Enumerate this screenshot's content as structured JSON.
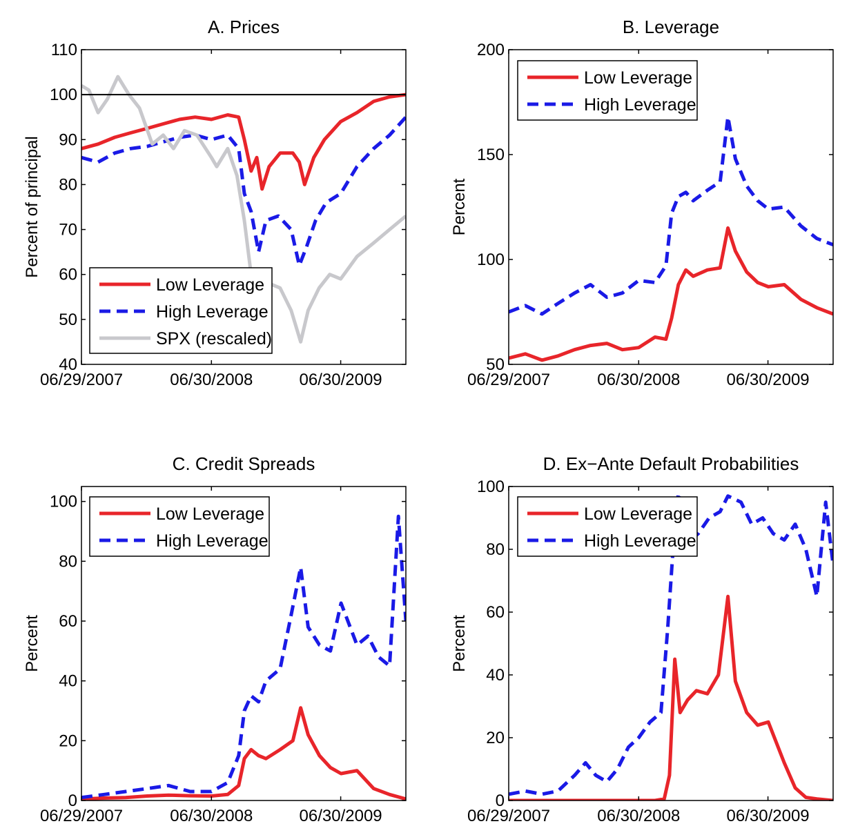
{
  "colors": {
    "low": "#e8252a",
    "high": "#1a1ae6",
    "spx": "#c8c8cc",
    "axis": "#000000"
  },
  "chart_data": [
    {
      "type": "line",
      "title": "A. Prices",
      "ylabel": "Percent of principal",
      "xlabel": "",
      "ylim": [
        40,
        110
      ],
      "yticks": [
        40,
        50,
        60,
        70,
        80,
        90,
        100,
        110
      ],
      "xticks": [
        "06/29/2007",
        "06/30/2008",
        "06/30/2009"
      ],
      "xlim": [
        "2007-06-29",
        "2009-12-31"
      ],
      "reference_line": 100,
      "legend_position": "bottom-left",
      "series": [
        {
          "name": "Low Leverage",
          "style": "solid",
          "color_key": "low",
          "x": [
            "2007-06-29",
            "2007-08-15",
            "2007-10-01",
            "2007-11-15",
            "2008-01-01",
            "2008-02-15",
            "2008-04-01",
            "2008-05-15",
            "2008-06-30",
            "2008-08-15",
            "2008-09-15",
            "2008-10-01",
            "2008-10-20",
            "2008-11-05",
            "2008-11-20",
            "2008-12-10",
            "2009-01-10",
            "2009-02-15",
            "2009-03-05",
            "2009-03-20",
            "2009-04-15",
            "2009-05-15",
            "2009-06-30",
            "2009-08-15",
            "2009-10-01",
            "2009-11-15",
            "2009-12-31"
          ],
          "y": [
            88,
            89,
            90.5,
            91.5,
            92.5,
            93.5,
            94.5,
            95,
            94.5,
            95.5,
            95,
            90,
            83,
            86,
            79,
            84,
            87,
            87,
            85,
            80,
            86,
            90,
            94,
            96,
            98.5,
            99.5,
            100
          ]
        },
        {
          "name": "High Leverage",
          "style": "dashed",
          "color_key": "high",
          "x": [
            "2007-06-29",
            "2007-08-15",
            "2007-10-01",
            "2007-11-15",
            "2008-01-01",
            "2008-02-15",
            "2008-04-01",
            "2008-05-15",
            "2008-06-30",
            "2008-08-15",
            "2008-09-15",
            "2008-10-01",
            "2008-10-20",
            "2008-11-10",
            "2008-12-01",
            "2009-01-05",
            "2009-02-10",
            "2009-03-05",
            "2009-03-25",
            "2009-04-20",
            "2009-05-20",
            "2009-06-30",
            "2009-08-15",
            "2009-10-01",
            "2009-11-15",
            "2009-12-31"
          ],
          "y": [
            86,
            85,
            87,
            88,
            88.5,
            89.5,
            90.5,
            91,
            90,
            91,
            88,
            78,
            74,
            65,
            72,
            73,
            70,
            62,
            66,
            72,
            76,
            78,
            84,
            88,
            91,
            95
          ]
        },
        {
          "name": "SPX (rescaled)",
          "style": "solid",
          "color_key": "spx",
          "x": [
            "2007-06-29",
            "2007-07-20",
            "2007-08-15",
            "2007-09-10",
            "2007-10-10",
            "2007-11-10",
            "2007-12-10",
            "2008-01-15",
            "2008-02-15",
            "2008-03-15",
            "2008-04-15",
            "2008-05-20",
            "2008-06-30",
            "2008-07-15",
            "2008-08-15",
            "2008-09-10",
            "2008-10-01",
            "2008-10-20",
            "2008-11-20",
            "2008-12-10",
            "2009-01-10",
            "2009-02-10",
            "2009-03-09",
            "2009-03-30",
            "2009-04-30",
            "2009-05-30",
            "2009-06-30",
            "2009-08-15",
            "2009-10-01",
            "2009-11-15",
            "2009-12-31"
          ],
          "y": [
            102,
            101,
            96,
            99,
            104,
            100,
            97,
            89,
            91,
            88,
            92,
            91,
            86,
            84,
            88,
            82,
            72,
            60,
            54,
            58,
            57,
            52,
            45,
            52,
            57,
            60,
            59,
            64,
            67,
            70,
            73
          ]
        }
      ]
    },
    {
      "type": "line",
      "title": "B. Leverage",
      "ylabel": "Percent",
      "xlabel": "",
      "ylim": [
        50,
        200
      ],
      "yticks": [
        50,
        100,
        150,
        200
      ],
      "xticks": [
        "06/29/2007",
        "06/30/2008",
        "06/30/2009"
      ],
      "xlim": [
        "2007-06-29",
        "2009-12-31"
      ],
      "legend_position": "top-left",
      "series": [
        {
          "name": "Low Leverage",
          "style": "solid",
          "color_key": "low",
          "x": [
            "2007-06-29",
            "2007-08-15",
            "2007-10-01",
            "2007-11-15",
            "2008-01-01",
            "2008-02-15",
            "2008-04-01",
            "2008-05-15",
            "2008-06-30",
            "2008-08-15",
            "2008-09-15",
            "2008-10-01",
            "2008-10-20",
            "2008-11-10",
            "2008-12-01",
            "2009-01-10",
            "2009-02-15",
            "2009-03-09",
            "2009-03-30",
            "2009-05-01",
            "2009-06-01",
            "2009-07-01",
            "2009-08-15",
            "2009-10-01",
            "2009-11-15",
            "2009-12-31"
          ],
          "y": [
            53,
            55,
            52,
            54,
            57,
            59,
            60,
            57,
            58,
            63,
            62,
            72,
            88,
            95,
            92,
            95,
            96,
            115,
            104,
            94,
            89,
            87,
            88,
            81,
            77,
            74
          ]
        },
        {
          "name": "High Leverage",
          "style": "dashed",
          "color_key": "high",
          "x": [
            "2007-06-29",
            "2007-08-15",
            "2007-10-01",
            "2007-11-15",
            "2008-01-01",
            "2008-02-15",
            "2008-04-01",
            "2008-05-15",
            "2008-06-30",
            "2008-08-15",
            "2008-09-15",
            "2008-10-01",
            "2008-10-20",
            "2008-11-10",
            "2008-12-01",
            "2009-01-10",
            "2009-02-15",
            "2009-03-09",
            "2009-03-30",
            "2009-05-01",
            "2009-06-01",
            "2009-07-01",
            "2009-08-15",
            "2009-10-01",
            "2009-11-15",
            "2009-12-31"
          ],
          "y": [
            75,
            78,
            74,
            79,
            84,
            88,
            82,
            84,
            90,
            89,
            97,
            122,
            130,
            132,
            128,
            133,
            137,
            168,
            148,
            135,
            128,
            124,
            125,
            116,
            110,
            107
          ]
        }
      ]
    },
    {
      "type": "line",
      "title": "C. Credit Spreads",
      "ylabel": "Percent",
      "xlabel": "",
      "ylim": [
        0,
        105
      ],
      "yticks": [
        0,
        20,
        40,
        60,
        80,
        100
      ],
      "xticks": [
        "06/29/2007",
        "06/30/2008",
        "06/30/2009"
      ],
      "xlim": [
        "2007-06-29",
        "2009-12-31"
      ],
      "legend_position": "top-left",
      "series": [
        {
          "name": "Low Leverage",
          "style": "solid",
          "color_key": "low",
          "x": [
            "2007-06-29",
            "2007-09-01",
            "2007-11-01",
            "2008-01-01",
            "2008-03-01",
            "2008-05-01",
            "2008-06-30",
            "2008-08-15",
            "2008-09-15",
            "2008-10-01",
            "2008-10-20",
            "2008-11-10",
            "2008-12-01",
            "2009-01-10",
            "2009-02-15",
            "2009-03-09",
            "2009-03-30",
            "2009-05-01",
            "2009-06-01",
            "2009-07-01",
            "2009-08-15",
            "2009-10-01",
            "2009-11-15",
            "2009-12-31"
          ],
          "y": [
            0.5,
            0.8,
            1,
            1.5,
            1.8,
            1.6,
            1.5,
            2,
            5,
            14,
            17,
            15,
            14,
            17,
            20,
            31,
            22,
            15,
            11,
            9,
            10,
            4,
            2,
            0.5
          ]
        },
        {
          "name": "High Leverage",
          "style": "dashed",
          "color_key": "high",
          "x": [
            "2007-06-29",
            "2007-09-01",
            "2007-11-01",
            "2008-01-01",
            "2008-03-01",
            "2008-05-01",
            "2008-06-30",
            "2008-08-15",
            "2008-09-15",
            "2008-10-01",
            "2008-10-20",
            "2008-11-10",
            "2008-12-01",
            "2009-01-10",
            "2009-02-10",
            "2009-03-09",
            "2009-03-30",
            "2009-05-01",
            "2009-06-01",
            "2009-07-01",
            "2009-08-15",
            "2009-09-15",
            "2009-10-15",
            "2009-11-15",
            "2009-12-10",
            "2009-12-31"
          ],
          "y": [
            1,
            2,
            3,
            4,
            5,
            3,
            3,
            6,
            15,
            30,
            35,
            33,
            40,
            44,
            62,
            78,
            58,
            52,
            50,
            66,
            52,
            55,
            48,
            45,
            95,
            60
          ]
        }
      ]
    },
    {
      "type": "line",
      "title": "D. Ex−Ante Default Probabilities",
      "ylabel": "Percent",
      "xlabel": "",
      "ylim": [
        0,
        100
      ],
      "yticks": [
        0,
        20,
        40,
        60,
        80,
        100
      ],
      "xticks": [
        "06/29/2007",
        "06/30/2008",
        "06/30/2009"
      ],
      "xlim": [
        "2007-06-29",
        "2009-12-31"
      ],
      "legend_position": "top-left",
      "series": [
        {
          "name": "Low Leverage",
          "style": "solid",
          "color_key": "low",
          "x": [
            "2007-06-29",
            "2007-09-01",
            "2007-11-01",
            "2008-01-01",
            "2008-03-01",
            "2008-05-01",
            "2008-06-30",
            "2008-08-15",
            "2008-09-10",
            "2008-09-25",
            "2008-10-10",
            "2008-10-25",
            "2008-11-15",
            "2008-12-10",
            "2009-01-10",
            "2009-02-10",
            "2009-03-09",
            "2009-03-30",
            "2009-05-01",
            "2009-06-01",
            "2009-07-01",
            "2009-08-15",
            "2009-09-15",
            "2009-10-15",
            "2009-11-15",
            "2009-12-31"
          ],
          "y": [
            0,
            0,
            0,
            0,
            0,
            0,
            0,
            0,
            0.5,
            8,
            45,
            28,
            32,
            35,
            34,
            40,
            65,
            38,
            28,
            24,
            25,
            12,
            4,
            1,
            0.5,
            0
          ]
        },
        {
          "name": "High Leverage",
          "style": "dashed",
          "color_key": "high",
          "x": [
            "2007-06-29",
            "2007-08-15",
            "2007-10-01",
            "2007-11-15",
            "2008-01-01",
            "2008-02-01",
            "2008-03-01",
            "2008-04-01",
            "2008-05-01",
            "2008-06-01",
            "2008-06-30",
            "2008-08-01",
            "2008-09-01",
            "2008-09-20",
            "2008-10-05",
            "2008-10-20",
            "2008-11-15",
            "2008-12-15",
            "2009-01-15",
            "2009-02-15",
            "2009-03-09",
            "2009-04-15",
            "2009-05-15",
            "2009-06-15",
            "2009-07-15",
            "2009-08-15",
            "2009-09-15",
            "2009-10-15",
            "2009-11-15",
            "2009-12-10",
            "2009-12-31"
          ],
          "y": [
            2,
            3,
            2,
            3,
            8,
            12,
            8,
            6,
            10,
            17,
            20,
            25,
            28,
            55,
            80,
            98,
            82,
            85,
            90,
            92,
            97,
            95,
            88,
            90,
            85,
            83,
            88,
            80,
            65,
            95,
            75
          ]
        }
      ]
    }
  ]
}
